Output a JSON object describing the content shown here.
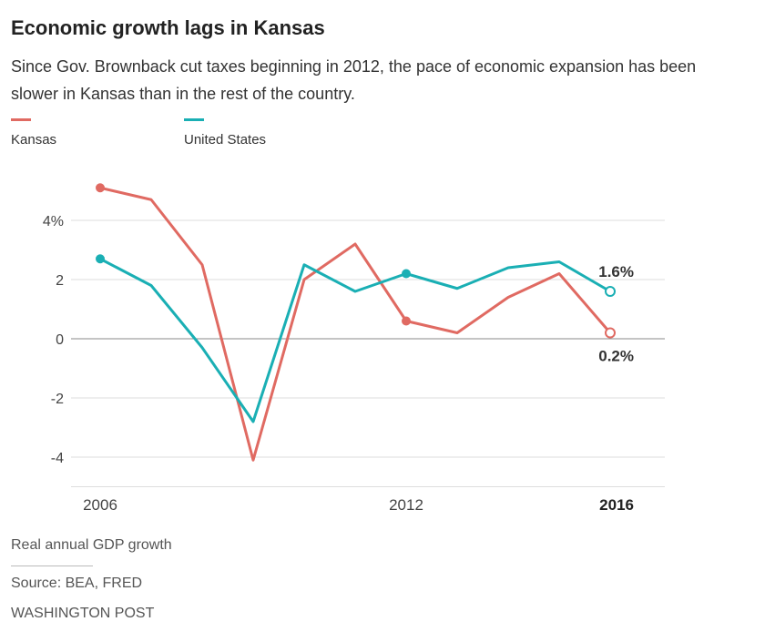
{
  "title": "Economic growth lags in Kansas",
  "subtitle": "Since Gov. Brownback cut taxes beginning in 2012, the pace of economic expansion has been slower in Kansas than in the rest of the country.",
  "footer": {
    "note": "Real annual GDP growth",
    "source": "Source: BEA, FRED",
    "credit": "WASHINGTON POST"
  },
  "chart_data": {
    "type": "line",
    "x": [
      2006,
      2007,
      2008,
      2009,
      2010,
      2011,
      2012,
      2013,
      2014,
      2015,
      2016
    ],
    "series": [
      {
        "name": "Kansas",
        "color": "#e06a62",
        "values": [
          5.1,
          4.7,
          2.5,
          -4.1,
          2.0,
          3.2,
          0.6,
          0.2,
          1.4,
          2.2,
          0.2
        ],
        "end_label": "0.2%"
      },
      {
        "name": "United States",
        "color": "#1aafb4",
        "values": [
          2.7,
          1.8,
          -0.3,
          -2.8,
          2.5,
          1.6,
          2.2,
          1.7,
          2.4,
          2.6,
          1.6
        ],
        "end_label": "1.6%"
      }
    ],
    "ylim": [
      -5,
      5.5
    ],
    "yticks": [
      4,
      2,
      0,
      -2,
      -4
    ],
    "ytick_labels": [
      "4%",
      "2",
      "0",
      "-2",
      "-4"
    ],
    "xticks": [
      2006,
      2012,
      2016
    ],
    "xtick_labels": [
      "2006",
      "2012",
      "2016"
    ],
    "grid": true,
    "legend_placement": "top-left"
  }
}
